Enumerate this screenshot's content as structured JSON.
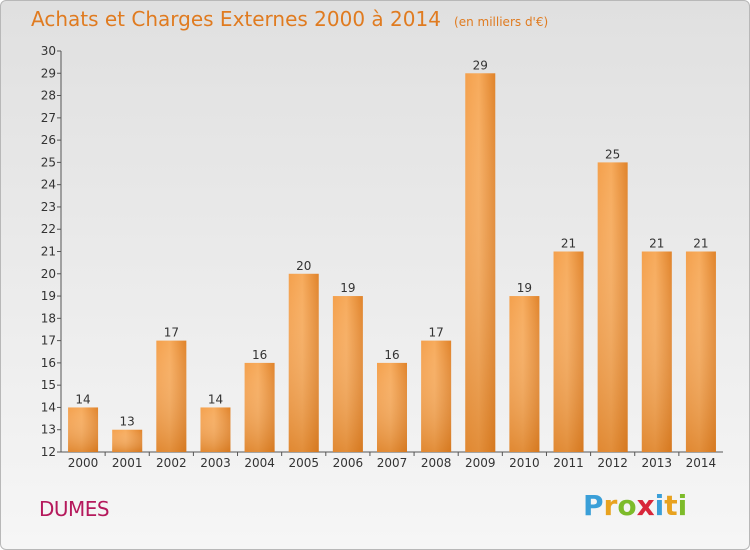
{
  "header": {
    "title": "Achats et Charges Externes 2000 à 2014",
    "unit_note": "(en milliers d'€)"
  },
  "footer": {
    "commune": "DUMES",
    "brand": [
      "P",
      "r",
      "o",
      "x",
      "i",
      "t",
      "i"
    ],
    "brand_colors": [
      "#3a9fd8",
      "#e8a21f",
      "#7dbb2a",
      "#d8263a",
      "#3a9fd8",
      "#e8a21f",
      "#7dbb2a"
    ]
  },
  "colors": {
    "title": "#e07b20",
    "bar_light": "#f7a855",
    "bar_dark": "#d97515",
    "commune": "#b5195c"
  },
  "chart_data": {
    "type": "bar",
    "title": "Achats et Charges Externes 2000 à 2014",
    "subtitle": "(en milliers d'€)",
    "xlabel": "",
    "ylabel": "",
    "categories": [
      "2000",
      "2001",
      "2002",
      "2003",
      "2004",
      "2005",
      "2006",
      "2007",
      "2008",
      "2009",
      "2010",
      "2011",
      "2012",
      "2013",
      "2014"
    ],
    "values": [
      14,
      13,
      17,
      14,
      16,
      20,
      19,
      16,
      17,
      29,
      19,
      21,
      25,
      21,
      21
    ],
    "ylim": [
      12,
      30
    ],
    "yticks": [
      12,
      13,
      14,
      15,
      16,
      17,
      18,
      19,
      20,
      21,
      22,
      23,
      24,
      25,
      26,
      27,
      28,
      29,
      30
    ],
    "grid": false,
    "legend": "none"
  }
}
